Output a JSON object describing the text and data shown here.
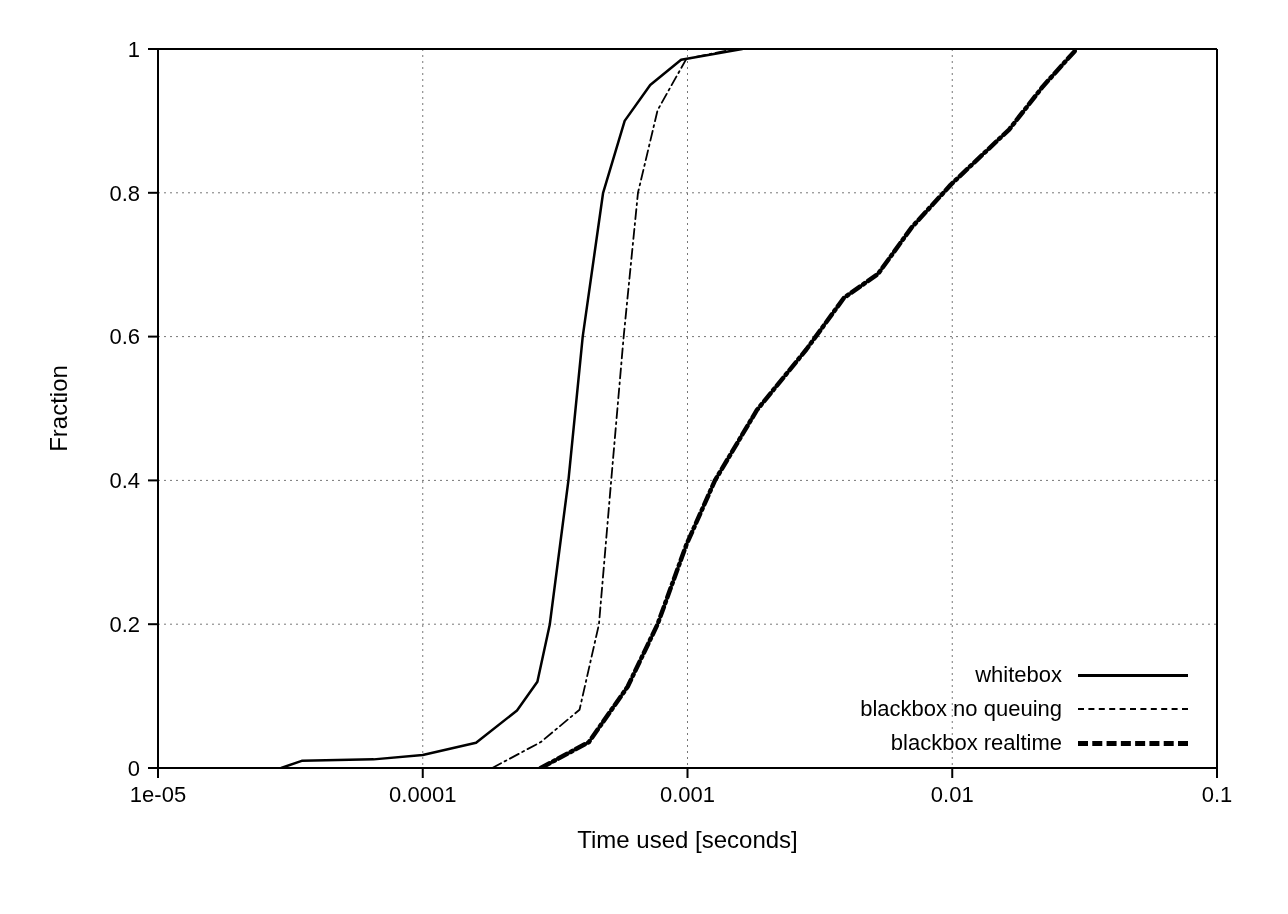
{
  "chart_data": {
    "type": "line",
    "xlabel": "Time used [seconds]",
    "ylabel": "Fraction",
    "log": "x",
    "xlim": [
      1e-05,
      0.1
    ],
    "xticks": [
      {
        "value": 1e-05,
        "label": "1e-05"
      },
      0.0001,
      0.001,
      0.01,
      0.1
    ],
    "ylim": [
      0,
      1
    ],
    "yticks": [
      0,
      0.2,
      0.4,
      0.6,
      0.8,
      1
    ],
    "grid": true,
    "legend": "bottom right",
    "marker": "none",
    "series": [
      {
        "name": "whitebox",
        "color": "#000000",
        "line_style": "solid",
        "x": [
          2.92e-05,
          3.49e-05,
          6.52e-05,
          0.0001,
          0.000159,
          0.000227,
          0.000271,
          0.000302,
          0.000355,
          0.000402,
          0.00048,
          0.000579,
          0.000723,
          0.000946,
          0.00161
        ],
        "values": [
          0,
          0.01,
          0.012,
          0.018,
          0.035,
          0.08,
          0.12,
          0.2,
          0.4,
          0.6,
          0.8,
          0.9,
          0.95,
          0.985,
          1
        ]
      },
      {
        "name": "blackbox no queuing",
        "color": "#000000",
        "line_style": "dashed",
        "x": [
          0.000183,
          0.000279,
          0.000391,
          0.000463,
          0.000515,
          0.000574,
          0.00065,
          0.000771,
          0.000989,
          0.0015
        ],
        "values": [
          0,
          0.036,
          0.081,
          0.2,
          0.4,
          0.6,
          0.8,
          0.915,
          0.986,
          1
        ]
      },
      {
        "name": "blackbox realtime",
        "color": "#000000",
        "line_style": "dashed",
        "x": [
          0.000279,
          0.000424,
          0.000594,
          0.000771,
          0.000989,
          0.00127,
          0.00183,
          0.00281,
          0.0039,
          0.00524,
          0.00703,
          0.00986,
          0.0117,
          0.0164,
          0.022,
          0.0295
        ],
        "values": [
          0,
          0.036,
          0.113,
          0.2,
          0.31,
          0.4,
          0.498,
          0.582,
          0.654,
          0.687,
          0.752,
          0.811,
          0.837,
          0.888,
          0.948,
          1
        ]
      }
    ]
  }
}
